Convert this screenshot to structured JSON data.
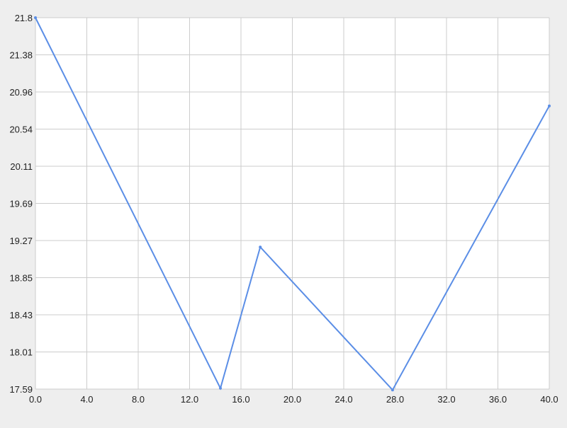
{
  "chart_data": {
    "type": "line",
    "title": "",
    "xlabel": "",
    "ylabel": "",
    "xlim": [
      0.0,
      40.0
    ],
    "ylim": [
      17.59,
      21.8
    ],
    "x_ticks": [
      "0.0",
      "4.0",
      "8.0",
      "12.0",
      "16.0",
      "20.0",
      "24.0",
      "28.0",
      "32.0",
      "36.0",
      "40.0"
    ],
    "y_ticks": [
      "21.8",
      "21.38",
      "20.96",
      "20.54",
      "20.11",
      "19.69",
      "19.27",
      "18.85",
      "18.43",
      "18.01",
      "17.59"
    ],
    "grid": true,
    "legend": "none",
    "series": [
      {
        "color": "#5b8ee6",
        "x": [
          0.0,
          14.4,
          17.5,
          27.8,
          40.0
        ],
        "y": [
          21.8,
          17.6,
          19.2,
          17.58,
          20.8
        ]
      }
    ]
  },
  "colors": {
    "background": "#eeeeee",
    "plot_background": "#ffffff",
    "grid": "#cccccc",
    "line": "#5b8ee6"
  }
}
